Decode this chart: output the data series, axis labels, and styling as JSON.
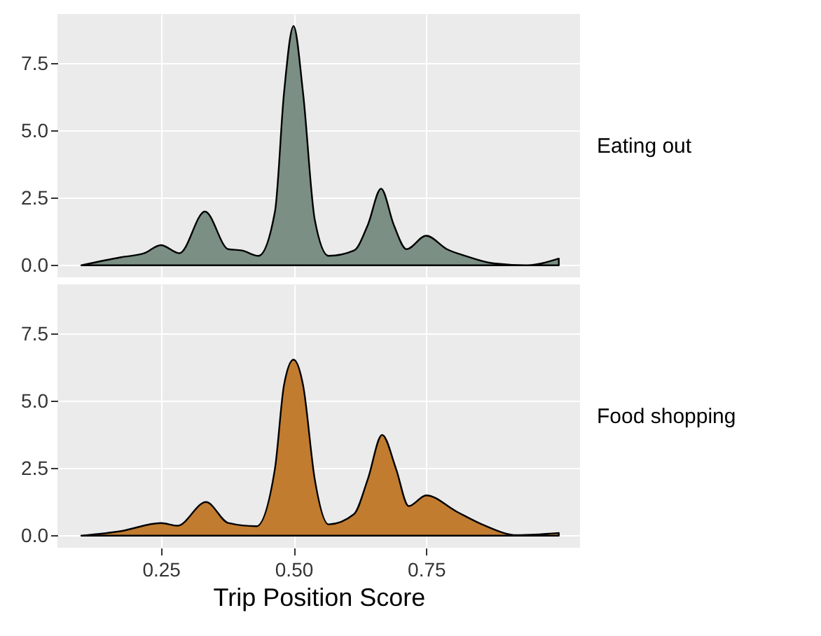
{
  "chart_data": [
    {
      "type": "area",
      "tick_labels": "y",
      "grid": true,
      "x": [
        0.1,
        0.175,
        0.219,
        0.25,
        0.285,
        0.333,
        0.377,
        0.403,
        0.434,
        0.465,
        0.482,
        0.5,
        0.518,
        0.54,
        0.566,
        0.614,
        0.64,
        0.665,
        0.689,
        0.713,
        0.75,
        0.789,
        0.824,
        0.877,
        0.939,
        1.0
      ],
      "series": [
        {
          "name": "Eating out",
          "color": "#7b8f84",
          "values": [
            0,
            0.3,
            0.45,
            0.75,
            0.45,
            2.0,
            0.6,
            0.55,
            0.35,
            2.0,
            6.4,
            8.9,
            6.4,
            1.7,
            0.35,
            0.55,
            1.5,
            2.85,
            1.5,
            0.6,
            1.1,
            0.6,
            0.35,
            0.07,
            0,
            0.25
          ]
        }
      ],
      "xlim": [
        0.055,
        1.04
      ],
      "xticks": [
        0.25,
        0.5,
        0.75
      ],
      "ylim": [
        -0.45,
        9.35
      ],
      "yticks": [
        {
          "value": 0,
          "label": "0.0"
        },
        {
          "value": 2.5,
          "label": "2.5"
        },
        {
          "value": 5,
          "label": "5.0"
        },
        {
          "value": 7.5,
          "label": "7.5"
        }
      ]
    },
    {
      "type": "area",
      "grid": true,
      "xlabel": "Trip Position Score",
      "x": [
        0.1,
        0.175,
        0.25,
        0.281,
        0.335,
        0.377,
        0.43,
        0.465,
        0.482,
        0.5,
        0.518,
        0.54,
        0.566,
        0.614,
        0.64,
        0.667,
        0.693,
        0.717,
        0.75,
        0.807,
        0.86,
        0.921,
        1.0
      ],
      "series": [
        {
          "name": "Food shopping",
          "color": "#c17c30",
          "values": [
            0,
            0.17,
            0.47,
            0.37,
            1.25,
            0.47,
            0.35,
            2.5,
            5.6,
            6.55,
            5.6,
            2.1,
            0.42,
            0.8,
            2.1,
            3.75,
            2.5,
            1.1,
            1.5,
            0.9,
            0.38,
            0.02,
            0.1
          ]
        }
      ],
      "xlim": [
        0.055,
        1.04
      ],
      "xticks": [
        {
          "value": 0.25,
          "label": "0.25"
        },
        {
          "value": 0.5,
          "label": "0.50"
        },
        {
          "value": 0.75,
          "label": "0.75"
        }
      ],
      "ylim": [
        -0.45,
        9.35
      ],
      "yticks": [
        {
          "value": 0,
          "label": "0.0"
        },
        {
          "value": 2.5,
          "label": "2.5"
        },
        {
          "value": 5,
          "label": "5.0"
        },
        {
          "value": 7.5,
          "label": "7.5"
        }
      ]
    }
  ]
}
